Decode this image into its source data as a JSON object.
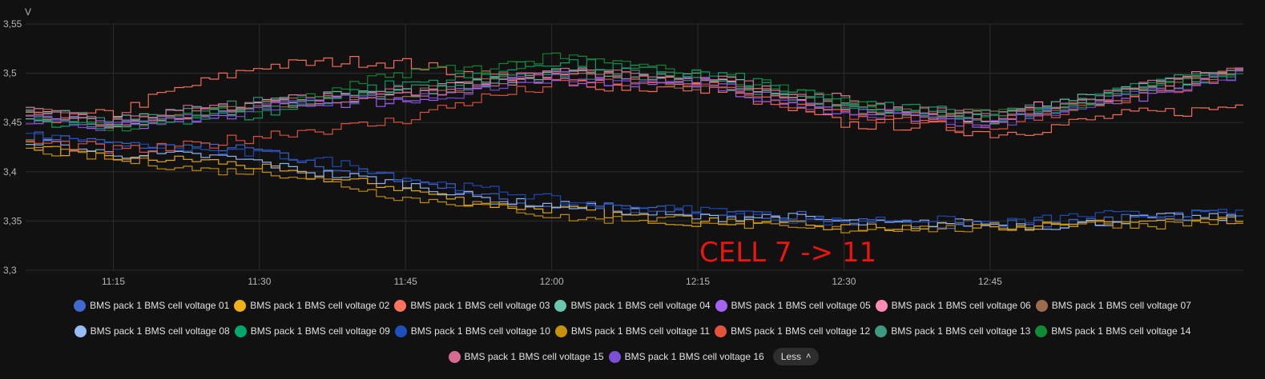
{
  "chart_data": {
    "type": "line",
    "ylabel": "V",
    "ylim": [
      3.3,
      3.55
    ],
    "yticks": [
      "3,3",
      "3,35",
      "3,4",
      "3,45",
      "3,5",
      "3,55"
    ],
    "ytick_values": [
      3.3,
      3.35,
      3.4,
      3.45,
      3.5,
      3.55
    ],
    "xlim": [
      "11:06",
      "13:11"
    ],
    "xticks": [
      "11:15",
      "11:30",
      "11:45",
      "12:00",
      "12:15",
      "12:30",
      "12:45"
    ],
    "grid": true,
    "line_style": "step",
    "annotation": "CELL 7 -> 11",
    "legend_placement": "bottom",
    "legend_toggle_label": "Less",
    "series": [
      {
        "name": "BMS pack 1 BMS cell voltage 01",
        "color": "#4269d0",
        "group": "low",
        "x": [
          "11:06",
          "11:15",
          "11:30",
          "11:45",
          "12:00",
          "12:15",
          "12:30",
          "12:45",
          "13:11"
        ],
        "y": [
          3.435,
          3.43,
          3.42,
          3.39,
          3.365,
          3.36,
          3.35,
          3.345,
          3.36
        ]
      },
      {
        "name": "BMS pack 1 BMS cell voltage 02",
        "color": "#efb118",
        "group": "low",
        "x": [
          "11:06",
          "11:15",
          "11:30",
          "11:45",
          "12:00",
          "12:15",
          "12:30",
          "12:45",
          "13:11"
        ],
        "y": [
          3.425,
          3.415,
          3.405,
          3.38,
          3.36,
          3.35,
          3.345,
          3.345,
          3.35
        ]
      },
      {
        "name": "BMS pack 1 BMS cell voltage 03",
        "color": "#ff725c",
        "group": "high",
        "x": [
          "11:06",
          "11:15",
          "11:30",
          "11:45",
          "12:00",
          "12:15",
          "12:30",
          "12:45",
          "13:11"
        ],
        "y": [
          3.455,
          3.46,
          3.51,
          3.51,
          3.49,
          3.485,
          3.45,
          3.44,
          3.47
        ]
      },
      {
        "name": "BMS pack 1 BMS cell voltage 04",
        "color": "#6cc5b0",
        "group": "high",
        "x": [
          "11:06",
          "11:15",
          "11:30",
          "11:45",
          "12:00",
          "12:15",
          "12:30",
          "12:45",
          "13:11"
        ],
        "y": [
          3.46,
          3.45,
          3.47,
          3.48,
          3.5,
          3.495,
          3.465,
          3.455,
          3.505
        ]
      },
      {
        "name": "BMS pack 1 BMS cell voltage 05",
        "color": "#a463f2",
        "group": "high",
        "x": [
          "11:06",
          "11:15",
          "11:30",
          "11:45",
          "12:00",
          "12:15",
          "12:30",
          "12:45",
          "13:11"
        ],
        "y": [
          3.455,
          3.445,
          3.465,
          3.475,
          3.495,
          3.49,
          3.46,
          3.45,
          3.5
        ]
      },
      {
        "name": "BMS pack 1 BMS cell voltage 06",
        "color": "#ff8ab7",
        "group": "high",
        "x": [
          "11:06",
          "11:15",
          "11:30",
          "11:45",
          "12:00",
          "12:15",
          "12:30",
          "12:45",
          "13:11"
        ],
        "y": [
          3.46,
          3.45,
          3.47,
          3.48,
          3.5,
          3.495,
          3.47,
          3.455,
          3.505
        ]
      },
      {
        "name": "BMS pack 1 BMS cell voltage 07",
        "color": "#9c6b4e",
        "group": "high",
        "x": [
          "11:06",
          "11:15",
          "11:30",
          "11:45",
          "12:00",
          "12:15",
          "12:30",
          "12:45",
          "13:11"
        ],
        "y": [
          3.46,
          3.45,
          3.47,
          3.48,
          3.5,
          3.49,
          3.465,
          3.455,
          3.5
        ]
      },
      {
        "name": "BMS pack 1 BMS cell voltage 08",
        "color": "#97bbf5",
        "group": "low",
        "x": [
          "11:06",
          "11:15",
          "11:30",
          "11:45",
          "12:00",
          "12:15",
          "12:30",
          "12:45",
          "13:11"
        ],
        "y": [
          3.43,
          3.42,
          3.41,
          3.385,
          3.365,
          3.355,
          3.35,
          3.345,
          3.355
        ]
      },
      {
        "name": "BMS pack 1 BMS cell voltage 09",
        "color": "#00a86b",
        "group": "high",
        "x": [
          "11:06",
          "11:15",
          "11:30",
          "11:45",
          "12:00",
          "12:15",
          "12:30",
          "12:45",
          "13:11"
        ],
        "y": [
          3.455,
          3.445,
          3.46,
          3.49,
          3.51,
          3.5,
          3.47,
          3.455,
          3.505
        ]
      },
      {
        "name": "BMS pack 1 BMS cell voltage 10",
        "color": "#1f4fbf",
        "group": "low",
        "x": [
          "11:06",
          "11:15",
          "11:30",
          "11:45",
          "12:00",
          "12:15",
          "12:30",
          "12:45",
          "13:11"
        ],
        "y": [
          3.44,
          3.425,
          3.42,
          3.395,
          3.37,
          3.36,
          3.35,
          3.35,
          3.36
        ]
      },
      {
        "name": "BMS pack 1 BMS cell voltage 11",
        "color": "#c7920a",
        "group": "low",
        "x": [
          "11:06",
          "11:15",
          "11:30",
          "11:45",
          "12:00",
          "12:15",
          "12:30",
          "12:45",
          "13:11"
        ],
        "y": [
          3.425,
          3.41,
          3.4,
          3.375,
          3.355,
          3.35,
          3.34,
          3.345,
          3.35
        ]
      },
      {
        "name": "BMS pack 1 BMS cell voltage 12",
        "color": "#e5533d",
        "group": "high",
        "x": [
          "11:06",
          "11:15",
          "11:30",
          "11:45",
          "12:00",
          "12:15",
          "12:30",
          "12:45",
          "13:11"
        ],
        "y": [
          3.43,
          3.42,
          3.435,
          3.455,
          3.49,
          3.49,
          3.455,
          3.445,
          3.5
        ]
      },
      {
        "name": "BMS pack 1 BMS cell voltage 13",
        "color": "#3d9980",
        "group": "high",
        "x": [
          "11:06",
          "11:15",
          "11:30",
          "11:45",
          "12:00",
          "12:15",
          "12:30",
          "12:45",
          "13:11"
        ],
        "y": [
          3.46,
          3.45,
          3.47,
          3.48,
          3.5,
          3.495,
          3.465,
          3.455,
          3.505
        ]
      },
      {
        "name": "BMS pack 1 BMS cell voltage 14",
        "color": "#138a36",
        "group": "high",
        "x": [
          "11:06",
          "11:15",
          "11:30",
          "11:45",
          "12:00",
          "12:15",
          "12:30",
          "12:45",
          "13:11"
        ],
        "y": [
          3.46,
          3.445,
          3.465,
          3.5,
          3.515,
          3.5,
          3.47,
          3.455,
          3.505
        ]
      },
      {
        "name": "BMS pack 1 BMS cell voltage 15",
        "color": "#d66a92",
        "group": "high",
        "x": [
          "11:06",
          "11:15",
          "11:30",
          "11:45",
          "12:00",
          "12:15",
          "12:30",
          "12:45",
          "13:11"
        ],
        "y": [
          3.46,
          3.45,
          3.47,
          3.48,
          3.5,
          3.495,
          3.465,
          3.455,
          3.505
        ]
      },
      {
        "name": "BMS pack 1 BMS cell voltage 16",
        "color": "#7b4fd6",
        "group": "high",
        "x": [
          "11:06",
          "11:15",
          "11:30",
          "11:45",
          "12:00",
          "12:15",
          "12:30",
          "12:45",
          "13:11"
        ],
        "y": [
          3.455,
          3.445,
          3.465,
          3.475,
          3.495,
          3.49,
          3.46,
          3.45,
          3.5
        ]
      }
    ]
  }
}
